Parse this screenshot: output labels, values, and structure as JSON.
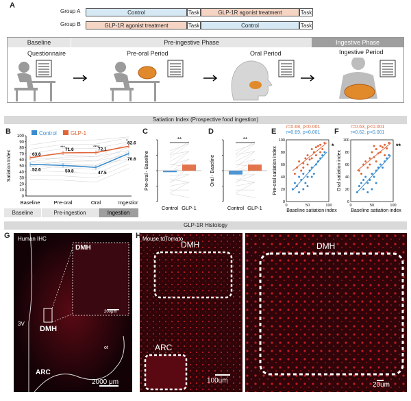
{
  "panel_labels": {
    "a": "A",
    "b": "B",
    "c": "C",
    "d": "D",
    "e": "E",
    "f": "F",
    "g": "G",
    "h": "H"
  },
  "design": {
    "group_a_label": "Group A",
    "group_b_label": "Group B",
    "group_a": [
      "Control",
      "Task",
      "GLP-1R agonist treatment",
      "Task"
    ],
    "group_b": [
      "GLP-1R agonist treatment",
      "Task",
      "Control",
      "Task"
    ],
    "phases": [
      "Baseline",
      "Pre-ingestive Phase",
      "Ingestive Phase"
    ],
    "periods": [
      "Questionnaire",
      "Pre-oral Period",
      "Oral Period",
      "Ingestive Period"
    ]
  },
  "sections": {
    "satiation": "Satiation Index (Prospective food ingestion)",
    "histology": "GLP-1R Histology"
  },
  "colors": {
    "control": "#3a8ccf",
    "glp1": "#e0663a",
    "grid": "#cfcfcf",
    "phase_gray": "#9e9e9e",
    "phase_light": "#e6e6e6"
  },
  "chart_data": [
    {
      "panel": "B",
      "type": "line",
      "ylabel": "Satiation Index",
      "ylim": [
        0,
        100
      ],
      "yticks": [
        0,
        10,
        20,
        30,
        40,
        50,
        60,
        70,
        80,
        90,
        100
      ],
      "categories": [
        "Baseline",
        "Pre-oral",
        "Oral",
        "Ingestion"
      ],
      "legend": [
        "Control",
        "GLP-1"
      ],
      "series": [
        {
          "name": "Control",
          "values": [
            52.6,
            50.8,
            47.5,
            70.6
          ],
          "labels": [
            "52.6",
            "50.8",
            "47.5",
            "70.6"
          ]
        },
        {
          "name": "GLP-1",
          "values": [
            63.6,
            71.6,
            72.1,
            82.6
          ],
          "labels": [
            "63.6",
            "71.6",
            "72.1",
            "82.6"
          ]
        }
      ],
      "significance": [
        "",
        "***",
        "****",
        "*"
      ],
      "phase_bar": [
        "Baseline",
        "Pre-ingestion",
        "Ingestion"
      ]
    },
    {
      "panel": "C",
      "type": "bar",
      "ylabel": "Pre-oral - Baseline",
      "ylim": [
        -40,
        40
      ],
      "yticks": [
        -40,
        -20,
        0,
        20,
        40
      ],
      "categories": [
        "Control",
        "GLP-1"
      ],
      "values": [
        -2,
        8
      ],
      "significance": "**"
    },
    {
      "panel": "D",
      "type": "bar",
      "ylabel": "Oral - Baseline",
      "ylim": [
        -40,
        40
      ],
      "yticks": [
        -40,
        -20,
        0,
        20,
        40
      ],
      "categories": [
        "Control",
        "GLP-1"
      ],
      "values": [
        -5,
        8
      ],
      "significance": "**"
    },
    {
      "panel": "E",
      "type": "scatter",
      "xlabel": "Baseline satiation index",
      "ylabel": "Pre-oral satiation index",
      "xlim": [
        0,
        100
      ],
      "ylim": [
        0,
        100
      ],
      "xticks": [
        0,
        50,
        100
      ],
      "yticks": [
        0,
        20,
        40,
        60,
        80,
        100
      ],
      "stats": [
        {
          "text": "r=0.68, p<0.001",
          "color": "#e0663a"
        },
        {
          "text": "r=0.69, p<0.001",
          "color": "#3a8ccf"
        }
      ],
      "significance": "*",
      "series": [
        {
          "name": "GLP-1",
          "points": [
            [
              20,
              45
            ],
            [
              30,
              65
            ],
            [
              35,
              50
            ],
            [
              40,
              55
            ],
            [
              45,
              70
            ],
            [
              50,
              75
            ],
            [
              55,
              68
            ],
            [
              60,
              85
            ],
            [
              65,
              80
            ],
            [
              70,
              88
            ],
            [
              75,
              90
            ],
            [
              80,
              92
            ],
            [
              85,
              85
            ],
            [
              90,
              95
            ],
            [
              50,
              60
            ],
            [
              70,
              75
            ],
            [
              60,
              70
            ],
            [
              40,
              62
            ],
            [
              80,
              80
            ],
            [
              25,
              55
            ]
          ],
          "fit": [
            [
              15,
              50
            ],
            [
              95,
              95
            ]
          ]
        },
        {
          "name": "Control",
          "points": [
            [
              15,
              20
            ],
            [
              20,
              30
            ],
            [
              25,
              25
            ],
            [
              30,
              40
            ],
            [
              35,
              35
            ],
            [
              40,
              45
            ],
            [
              45,
              30
            ],
            [
              50,
              40
            ],
            [
              55,
              50
            ],
            [
              60,
              55
            ],
            [
              65,
              45
            ],
            [
              70,
              60
            ],
            [
              75,
              65
            ],
            [
              80,
              70
            ],
            [
              85,
              75
            ],
            [
              90,
              80
            ],
            [
              40,
              20
            ],
            [
              50,
              25
            ],
            [
              60,
              40
            ],
            [
              30,
              15
            ]
          ],
          "fit": [
            [
              15,
              18
            ],
            [
              95,
              80
            ]
          ]
        }
      ]
    },
    {
      "panel": "F",
      "type": "scatter",
      "xlabel": "Baseline satiation index",
      "ylabel": "Oral satiation index",
      "xlim": [
        0,
        100
      ],
      "ylim": [
        0,
        100
      ],
      "xticks": [
        0,
        50,
        100
      ],
      "yticks": [
        0,
        20,
        40,
        60,
        80,
        100
      ],
      "stats": [
        {
          "text": "r=0.63, p<0.001",
          "color": "#e0663a"
        },
        {
          "text": "r=0.62, p<0.001",
          "color": "#3a8ccf"
        }
      ],
      "significance": "**",
      "series": [
        {
          "name": "GLP-1",
          "points": [
            [
              20,
              50
            ],
            [
              30,
              60
            ],
            [
              40,
              55
            ],
            [
              45,
              70
            ],
            [
              50,
              80
            ],
            [
              55,
              72
            ],
            [
              60,
              85
            ],
            [
              65,
              78
            ],
            [
              70,
              90
            ],
            [
              75,
              88
            ],
            [
              80,
              92
            ],
            [
              85,
              86
            ],
            [
              90,
              95
            ],
            [
              35,
              65
            ],
            [
              60,
              65
            ],
            [
              70,
              80
            ],
            [
              45,
              60
            ],
            [
              25,
              45
            ],
            [
              80,
              75
            ],
            [
              55,
              90
            ]
          ],
          "fit": [
            [
              15,
              50
            ],
            [
              95,
              95
            ]
          ]
        },
        {
          "name": "Control",
          "points": [
            [
              15,
              15
            ],
            [
              20,
              25
            ],
            [
              25,
              30
            ],
            [
              30,
              20
            ],
            [
              35,
              40
            ],
            [
              40,
              30
            ],
            [
              45,
              35
            ],
            [
              50,
              45
            ],
            [
              55,
              40
            ],
            [
              60,
              50
            ],
            [
              65,
              55
            ],
            [
              70,
              60
            ],
            [
              75,
              55
            ],
            [
              80,
              65
            ],
            [
              85,
              70
            ],
            [
              90,
              75
            ],
            [
              40,
              15
            ],
            [
              50,
              20
            ],
            [
              60,
              30
            ],
            [
              30,
              35
            ]
          ],
          "fit": [
            [
              15,
              15
            ],
            [
              95,
              75
            ]
          ]
        }
      ]
    }
  ],
  "histology": {
    "g_title": "Human IHC",
    "g_inset": "DMH",
    "g_scale_inset": "200μm",
    "g_dmh": "DMH",
    "g_3v": "3V",
    "g_arc": "ARC",
    "g_ot": "ot",
    "g_scale": "2000 μm",
    "h_title": "Mouse tdTomato",
    "h_dmh": "DMH",
    "h_arc": "ARC",
    "h_scale": "100um",
    "h2_dmh": "DMH",
    "h2_scale": "20um"
  }
}
